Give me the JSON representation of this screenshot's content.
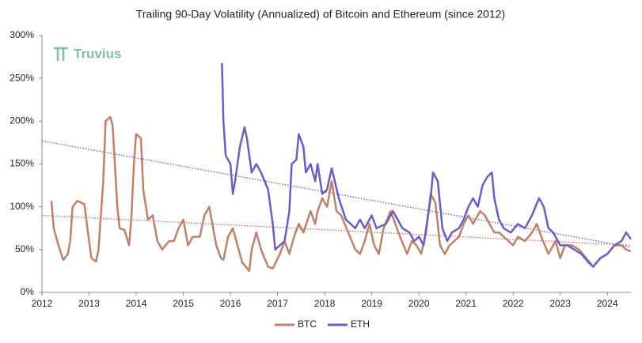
{
  "chart_data": {
    "type": "line",
    "title": "Trailing 90-Day Volatility (Annualized) of Bitcoin and Ethereum (since 2012)",
    "watermark": "Truvius",
    "xlim": [
      2012,
      2024.5
    ],
    "xticks": [
      2012,
      2013,
      2014,
      2015,
      2016,
      2017,
      2018,
      2019,
      2020,
      2021,
      2022,
      2023,
      2024
    ],
    "ylim": [
      0,
      300
    ],
    "yticks": [
      {
        "value": 0,
        "label": "0%"
      },
      {
        "value": 50,
        "label": "50%"
      },
      {
        "value": 100,
        "label": "100%"
      },
      {
        "value": 150,
        "label": "150%"
      },
      {
        "value": 200,
        "label": "200%"
      },
      {
        "value": 250,
        "label": "250%"
      },
      {
        "value": 300,
        "label": "300%"
      }
    ],
    "legend": "bottom",
    "series": [
      {
        "name": "BTC",
        "color": "#c0806a",
        "x": [
          2012.2,
          2012.25,
          2012.35,
          2012.45,
          2012.55,
          2012.6,
          2012.65,
          2012.75,
          2012.9,
          2013.0,
          2013.05,
          2013.15,
          2013.2,
          2013.3,
          2013.35,
          2013.45,
          2013.5,
          2013.6,
          2013.65,
          2013.75,
          2013.85,
          2013.9,
          2013.95,
          2014.0,
          2014.1,
          2014.15,
          2014.25,
          2014.35,
          2014.45,
          2014.55,
          2014.7,
          2014.8,
          2014.9,
          2015.0,
          2015.1,
          2015.2,
          2015.35,
          2015.45,
          2015.55,
          2015.7,
          2015.8,
          2015.85,
          2015.95,
          2016.05,
          2016.15,
          2016.25,
          2016.4,
          2016.45,
          2016.55,
          2016.65,
          2016.8,
          2016.9,
          2017.05,
          2017.15,
          2017.25,
          2017.35,
          2017.45,
          2017.55,
          2017.7,
          2017.8,
          2017.85,
          2017.95,
          2018.05,
          2018.15,
          2018.25,
          2018.35,
          2018.5,
          2018.65,
          2018.75,
          2018.85,
          2018.95,
          2019.05,
          2019.15,
          2019.25,
          2019.4,
          2019.5,
          2019.6,
          2019.75,
          2019.85,
          2019.95,
          2020.05,
          2020.15,
          2020.25,
          2020.35,
          2020.45,
          2020.55,
          2020.65,
          2020.75,
          2020.85,
          2020.95,
          2021.05,
          2021.15,
          2021.3,
          2021.4,
          2021.5,
          2021.6,
          2021.7,
          2021.8,
          2021.9,
          2022.0,
          2022.1,
          2022.25,
          2022.4,
          2022.5,
          2022.6,
          2022.75,
          2022.9,
          2023.0,
          2023.1,
          2023.25,
          2023.4,
          2023.55,
          2023.7,
          2023.85,
          2024.0,
          2024.15,
          2024.3,
          2024.4,
          2024.5
        ],
        "values": [
          107,
          75,
          55,
          38,
          45,
          60,
          100,
          107,
          103,
          60,
          40,
          36,
          50,
          130,
          200,
          205,
          195,
          100,
          75,
          73,
          55,
          90,
          150,
          185,
          180,
          120,
          85,
          90,
          60,
          50,
          60,
          60,
          75,
          85,
          55,
          65,
          65,
          90,
          100,
          55,
          40,
          38,
          65,
          75,
          55,
          35,
          25,
          50,
          70,
          50,
          30,
          28,
          45,
          60,
          45,
          65,
          80,
          70,
          95,
          80,
          95,
          110,
          100,
          130,
          95,
          90,
          70,
          50,
          45,
          60,
          80,
          55,
          45,
          75,
          95,
          80,
          65,
          45,
          60,
          55,
          45,
          70,
          115,
          105,
          55,
          45,
          55,
          60,
          65,
          80,
          90,
          80,
          95,
          90,
          80,
          70,
          70,
          65,
          60,
          55,
          65,
          60,
          70,
          80,
          65,
          45,
          60,
          40,
          55,
          55,
          50,
          40,
          30,
          40,
          45,
          55,
          55,
          50,
          48
        ]
      },
      {
        "name": "ETH",
        "color": "#6a5fc1",
        "x": [
          2015.82,
          2015.85,
          2015.9,
          2016.0,
          2016.05,
          2016.1,
          2016.2,
          2016.3,
          2016.35,
          2016.45,
          2016.55,
          2016.65,
          2016.8,
          2016.9,
          2016.95,
          2017.05,
          2017.15,
          2017.25,
          2017.3,
          2017.4,
          2017.45,
          2017.55,
          2017.6,
          2017.7,
          2017.8,
          2017.85,
          2017.95,
          2018.05,
          2018.15,
          2018.3,
          2018.45,
          2018.55,
          2018.65,
          2018.75,
          2018.85,
          2019.0,
          2019.1,
          2019.3,
          2019.45,
          2019.55,
          2019.65,
          2019.8,
          2019.9,
          2020.0,
          2020.1,
          2020.25,
          2020.3,
          2020.4,
          2020.5,
          2020.6,
          2020.7,
          2020.85,
          2020.95,
          2021.05,
          2021.15,
          2021.25,
          2021.35,
          2021.45,
          2021.55,
          2021.6,
          2021.7,
          2021.8,
          2021.95,
          2022.1,
          2022.25,
          2022.4,
          2022.55,
          2022.65,
          2022.75,
          2022.85,
          2023.0,
          2023.15,
          2023.3,
          2023.45,
          2023.6,
          2023.7,
          2023.85,
          2024.0,
          2024.15,
          2024.3,
          2024.4,
          2024.5
        ],
        "values": [
          268,
          200,
          160,
          150,
          115,
          130,
          170,
          193,
          180,
          140,
          150,
          140,
          120,
          80,
          50,
          55,
          60,
          95,
          150,
          155,
          185,
          170,
          140,
          150,
          130,
          150,
          115,
          120,
          145,
          110,
          85,
          80,
          75,
          85,
          75,
          90,
          75,
          80,
          95,
          85,
          75,
          70,
          60,
          65,
          55,
          110,
          140,
          130,
          75,
          60,
          70,
          75,
          85,
          100,
          110,
          100,
          125,
          135,
          140,
          110,
          85,
          75,
          70,
          80,
          75,
          90,
          110,
          100,
          75,
          70,
          55,
          55,
          50,
          45,
          35,
          30,
          40,
          45,
          55,
          60,
          70,
          62
        ]
      }
    ],
    "trendlines": [
      {
        "color": "#5a5ab5",
        "x": [
          2012,
          2024.5
        ],
        "values": [
          177,
          53
        ]
      },
      {
        "color": "#d06060",
        "x": [
          2012,
          2024.5
        ],
        "values": [
          90,
          55
        ]
      }
    ]
  }
}
